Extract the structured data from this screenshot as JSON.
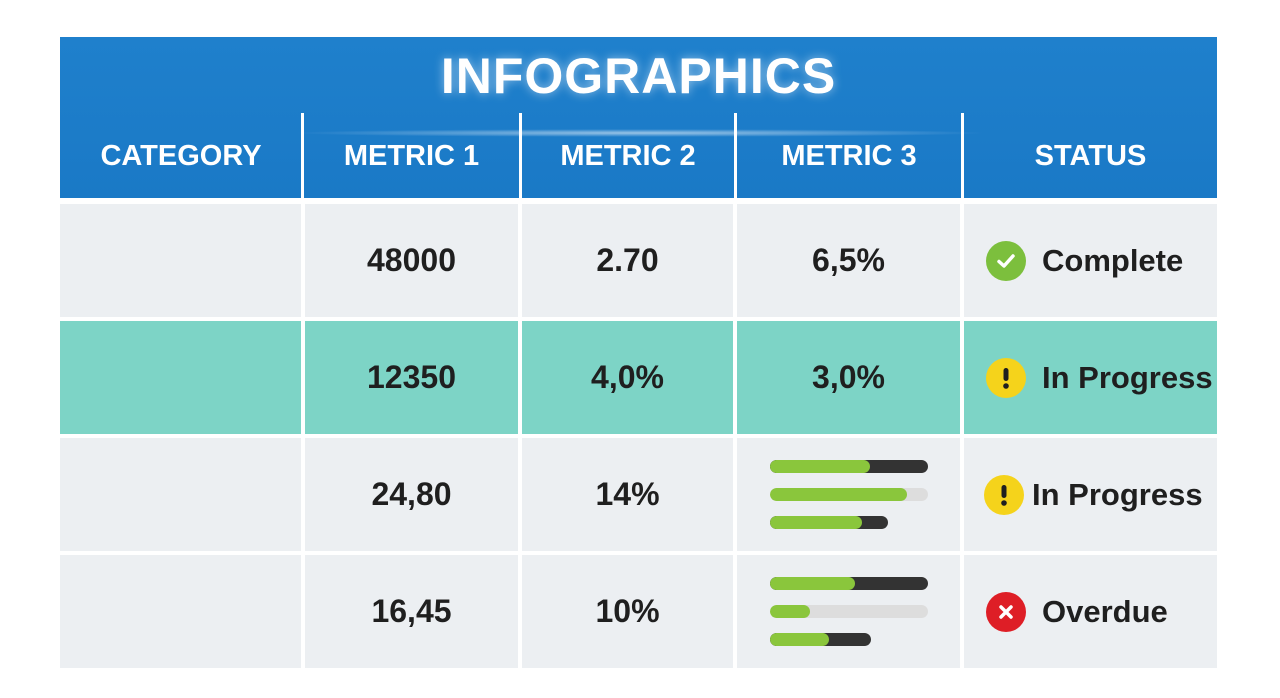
{
  "title": "INFOGRAPHICS",
  "columns": [
    "CATEGORY",
    "METRIC 1",
    "METRIC 2",
    "METRIC 3",
    "STATUS"
  ],
  "colors": {
    "header": "#1f80cc",
    "row_gray": "#eceff2",
    "row_teal": "#7dd4c6",
    "bar_fill": "#8ac63c",
    "bar_track_dark": "#333333",
    "bar_track_light": "#dddddd",
    "status_complete": "#7cbf3d",
    "status_progress": "#f5d31b",
    "status_overdue": "#de1e26"
  },
  "rows": [
    {
      "category": "",
      "metric1": "48000",
      "metric2": "2.70",
      "metric3": "6,5%",
      "status": {
        "label": "Complete",
        "icon": "check-icon",
        "type": "complete"
      }
    },
    {
      "category": "",
      "metric1": "12350",
      "metric2": "4,0%",
      "metric3": "3,0%",
      "status": {
        "label": "In Progress",
        "icon": "exclamation-icon",
        "type": "progress"
      }
    },
    {
      "category": "",
      "metric1": "24,80",
      "metric2": "14%",
      "metric3_bars": [
        {
          "fill": 0.63,
          "track": "dark"
        },
        {
          "fill": 0.87,
          "track": "light"
        },
        {
          "fill": 0.78,
          "track": "dark"
        }
      ],
      "status": {
        "label": "In Progress",
        "icon": "exclamation-icon",
        "type": "progress"
      }
    },
    {
      "category": "",
      "metric1": "16,45",
      "metric2": "10%",
      "metric3_bars": [
        {
          "fill": 0.54,
          "track": "dark"
        },
        {
          "fill": 0.25,
          "track": "light"
        },
        {
          "fill": 0.58,
          "track": "dark"
        }
      ],
      "status": {
        "label": "Overdue",
        "icon": "x-icon",
        "type": "overdue"
      }
    }
  ]
}
